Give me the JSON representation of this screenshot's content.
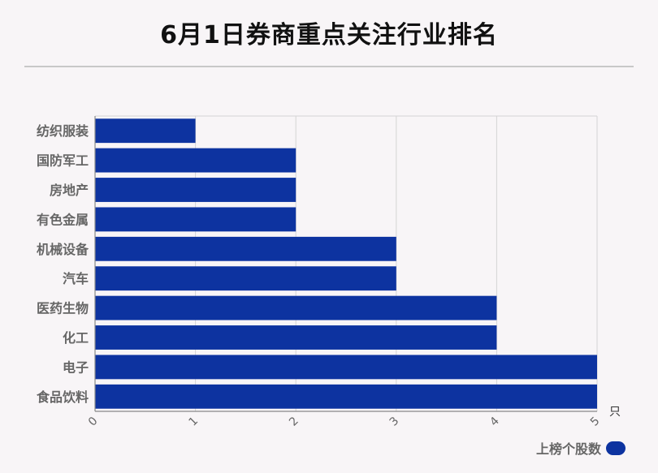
{
  "title": "6月1日券商重点关注行业排名",
  "colors": {
    "bar": "#0d33a0",
    "background": "#f8f5f7",
    "grid": "#d4d4d4",
    "label": "#666666"
  },
  "chart_data": {
    "type": "bar",
    "orientation": "horizontal",
    "title": "6月1日券商重点关注行业排名",
    "categories": [
      "纺织服装",
      "国防军工",
      "房地产",
      "有色金属",
      "机械设备",
      "汽车",
      "医药生物",
      "化工",
      "电子",
      "食品饮料"
    ],
    "series": [
      {
        "name": "上榜个股数",
        "values": [
          1,
          2,
          2,
          2,
          3,
          3,
          4,
          4,
          5,
          5
        ]
      }
    ],
    "xlim": [
      0,
      5
    ],
    "xticks": [
      "0",
      "1",
      "2",
      "3",
      "4",
      "5"
    ],
    "xunit": "只",
    "grid": true,
    "legend": "bottom-right"
  }
}
